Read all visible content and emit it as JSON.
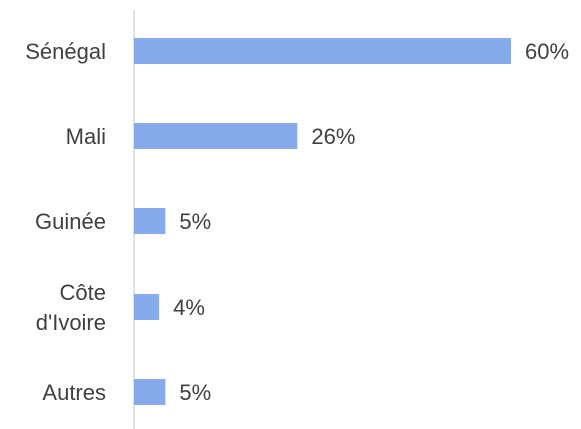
{
  "chart_data": {
    "type": "bar",
    "orientation": "horizontal",
    "categories": [
      [
        "Sénégal"
      ],
      [
        "Mali"
      ],
      [
        "Guinée"
      ],
      [
        "Côte",
        "d'Ivoire"
      ],
      [
        "Autres"
      ]
    ],
    "values": [
      60,
      26,
      5,
      4,
      5
    ],
    "value_labels": [
      "60%",
      "26%",
      "5%",
      "4%",
      "5%"
    ],
    "xlim": [
      0,
      60
    ],
    "grid": false,
    "legend": "none",
    "bar_color": "#86aaeb",
    "axis_color": "#d9d9d9"
  }
}
